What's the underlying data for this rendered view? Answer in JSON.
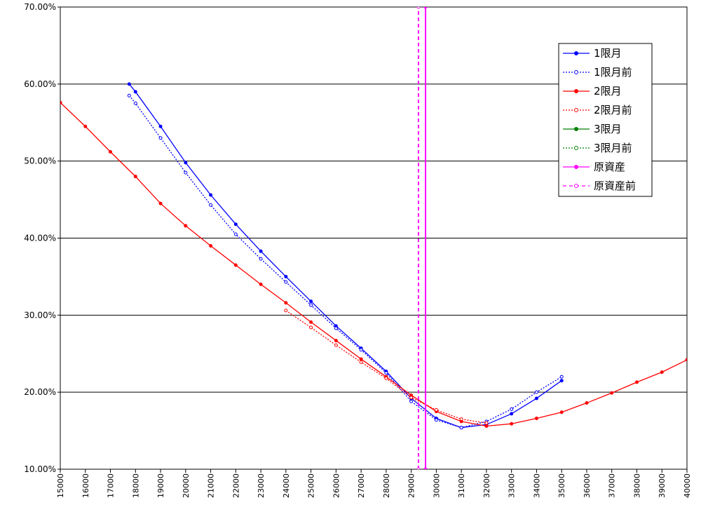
{
  "chart_data": {
    "type": "line",
    "xlim": [
      15000,
      40000
    ],
    "xticks": [
      15000,
      16000,
      17000,
      18000,
      19000,
      20000,
      21000,
      22000,
      23000,
      24000,
      25000,
      26000,
      27000,
      28000,
      29000,
      30000,
      31000,
      32000,
      33000,
      34000,
      35000,
      36000,
      37000,
      38000,
      39000,
      40000
    ],
    "ylim": [
      10,
      70
    ],
    "yticks": [
      {
        "value": 10,
        "label": "10.00%"
      },
      {
        "value": 20,
        "label": "20.00%"
      },
      {
        "value": 30,
        "label": "30.00%"
      },
      {
        "value": 40,
        "label": "40.00%"
      },
      {
        "value": 50,
        "label": "50.00%"
      },
      {
        "value": 60,
        "label": "60.00%"
      },
      {
        "value": 70,
        "label": "70.00%"
      }
    ],
    "grid": true,
    "legend": "right",
    "series": [
      {
        "name": "1限月",
        "color": "#0000ff",
        "style": "solid",
        "marker": "filled",
        "x": [
          17750,
          18000,
          19000,
          20000,
          21000,
          22000,
          23000,
          24000,
          25000,
          26000,
          27000,
          28000,
          29000,
          30000,
          31000,
          32000,
          33000,
          34000,
          35000
        ],
        "values": [
          60.0,
          59.0,
          54.5,
          49.8,
          45.6,
          41.8,
          38.3,
          35.0,
          31.8,
          28.6,
          25.7,
          22.7,
          19.2,
          16.6,
          15.4,
          15.8,
          17.2,
          19.2,
          21.5
        ]
      },
      {
        "name": "1限月前",
        "color": "#0000ff",
        "style": "dotted",
        "marker": "open",
        "x": [
          17750,
          18000,
          19000,
          20000,
          21000,
          22000,
          23000,
          24000,
          25000,
          26000,
          27000,
          28000,
          29000,
          30000,
          31000,
          32000,
          33000,
          34000,
          35000
        ],
        "values": [
          58.5,
          57.5,
          53.0,
          48.5,
          44.3,
          40.5,
          37.3,
          34.3,
          31.3,
          28.3,
          25.5,
          22.5,
          18.8,
          16.4,
          15.4,
          16.2,
          17.8,
          20.0,
          22.0
        ]
      },
      {
        "name": "2限月",
        "color": "#ff0000",
        "style": "solid",
        "marker": "filled",
        "x": [
          15000,
          16000,
          17000,
          18000,
          19000,
          20000,
          21000,
          22000,
          23000,
          24000,
          25000,
          26000,
          27000,
          28000,
          29000,
          30000,
          31000,
          32000,
          33000,
          34000,
          35000,
          36000,
          37000,
          38000,
          39000,
          40000
        ],
        "values": [
          57.6,
          54.5,
          51.2,
          48.0,
          44.5,
          41.6,
          39.0,
          36.5,
          34.0,
          31.6,
          29.1,
          26.7,
          24.3,
          22.0,
          19.6,
          17.5,
          16.2,
          15.6,
          15.9,
          16.6,
          17.4,
          18.6,
          19.9,
          21.3,
          22.6,
          24.2
        ]
      },
      {
        "name": "2限月前",
        "color": "#ff0000",
        "style": "dotted",
        "marker": "open",
        "x": [
          24000,
          25000,
          26000,
          27000,
          28000,
          29000,
          30000,
          31000,
          32000
        ],
        "values": [
          30.6,
          28.4,
          26.1,
          23.9,
          21.8,
          19.3,
          17.7,
          16.5,
          16.0
        ]
      },
      {
        "name": "3限月",
        "color": "#008000",
        "style": "solid",
        "marker": "filled",
        "x": [],
        "values": []
      },
      {
        "name": "3限月前",
        "color": "#008000",
        "style": "dotted",
        "marker": "open",
        "x": [],
        "values": []
      },
      {
        "name": "原資産",
        "color": "#ff00ff",
        "style": "solid",
        "marker": "filled",
        "x": [
          29570,
          29570
        ],
        "values": [
          10,
          70
        ]
      },
      {
        "name": "原資産前",
        "color": "#ff00ff",
        "style": "dashed",
        "marker": "open",
        "x": [
          29290,
          29290
        ],
        "values": [
          10,
          70
        ]
      }
    ]
  }
}
